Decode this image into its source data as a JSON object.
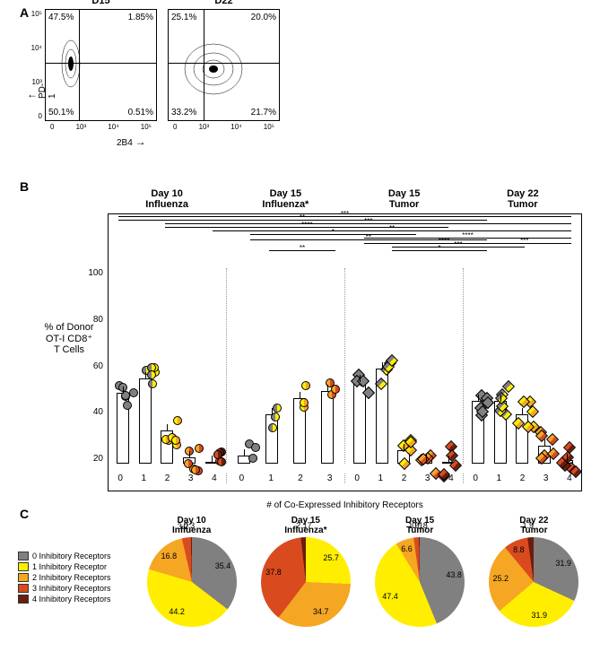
{
  "colors": {
    "c0": "#808080",
    "c1": "#ffee00",
    "c2": "#f5a623",
    "c3": "#d94b1f",
    "c4": "#6b1d0e",
    "half1a": "#808080",
    "half1b": "#ffee00",
    "half2a": "#ffee00",
    "half2b": "#f5a623",
    "half3a": "#f5a623",
    "half3b": "#d94b1f",
    "half4a": "#d94b1f",
    "half4b": "#6b1d0e"
  },
  "panelA": {
    "label": "A",
    "plots": [
      {
        "title": "D15",
        "q1": "47.5%",
        "q2": "1.85%",
        "q3": "50.1%",
        "q4": "0.51%",
        "cv": 30,
        "ch": 48
      },
      {
        "title": "D22",
        "q1": "25.1%",
        "q2": "20.0%",
        "q3": "33.2%",
        "q4": "21.7%",
        "cv": 32,
        "ch": 48
      }
    ],
    "yticks": [
      "10⁵",
      "10⁴",
      "10³",
      "0"
    ],
    "xticks": [
      "0",
      "10³",
      "10⁴",
      "10⁵"
    ],
    "ylabel": "PD-1",
    "xlabel": "2B4"
  },
  "panelB": {
    "label": "B",
    "headers": [
      "Day 10\nInfluenza",
      "Day 15\nInfluenza*",
      "Day 15\nTumor",
      "Day 22\nTumor"
    ],
    "ylabel": "% of Donor\nOT-I CD8⁺\nT Cells",
    "yticks": [
      "100",
      "80",
      "60",
      "40",
      "20"
    ],
    "xlabel": "# of Co-Expressed Inhibitory Receptors",
    "groups": [
      {
        "cats": [
          "0",
          "1",
          "2",
          "3",
          "4"
        ],
        "vals": [
          36,
          43,
          17,
          3,
          0.5
        ]
      },
      {
        "cats": [
          "0",
          "1",
          "2",
          "3"
        ],
        "vals": [
          4,
          25,
          33,
          37
        ]
      },
      {
        "cats": [
          "0",
          "1",
          "2",
          "3",
          "4"
        ],
        "vals": [
          42,
          48,
          7,
          2,
          0.3
        ]
      },
      {
        "cats": [
          "0",
          "1",
          "2",
          "3",
          "4"
        ],
        "vals": [
          32,
          32,
          25,
          9,
          2
        ]
      }
    ],
    "siglines": [
      {
        "l": 2,
        "r": 98,
        "t": 0,
        "s": "***"
      },
      {
        "l": 2,
        "r": 80,
        "t": 4,
        "s": "**"
      },
      {
        "l": 12,
        "r": 98,
        "t": 8,
        "s": "***"
      },
      {
        "l": 12,
        "r": 72,
        "t": 12,
        "s": "****"
      },
      {
        "l": 22,
        "r": 98,
        "t": 16,
        "s": "**"
      },
      {
        "l": 30,
        "r": 65,
        "t": 20,
        "s": "*"
      },
      {
        "l": 54,
        "r": 98,
        "t": 24,
        "s": "****"
      },
      {
        "l": 30,
        "r": 80,
        "t": 26,
        "s": "**"
      },
      {
        "l": 54,
        "r": 88,
        "t": 30,
        "s": "****"
      },
      {
        "l": 60,
        "r": 88,
        "t": 34,
        "s": "***"
      },
      {
        "l": 78,
        "r": 98,
        "t": 30,
        "s": "***"
      },
      {
        "l": 34,
        "r": 48,
        "t": 38,
        "s": "**"
      },
      {
        "l": 60,
        "r": 80,
        "t": 38,
        "s": "*"
      }
    ]
  },
  "panelC": {
    "label": "C",
    "legend": [
      "0 Inhibitory Receptors",
      "1 Inhibitory Receptor",
      "2 Inhibitory Receptors",
      "3 Inhibitory Receptors",
      "4 Inhibitory Receptors"
    ],
    "pies": [
      {
        "title": "Day 10\nInfluenza",
        "vals": [
          35.4,
          44.2,
          16.8,
          3.2,
          0.3
        ],
        "labels": [
          "35.4",
          "44.2",
          "16.8",
          "3.2",
          "0.3"
        ]
      },
      {
        "title": "Day 15\nInfluenza*",
        "vals": [
          0,
          25.7,
          34.7,
          37.8,
          2.17
        ],
        "labels": [
          "",
          "25.7",
          "34.7",
          "37.8",
          "2.17"
        ]
      },
      {
        "title": "Day 15\nTumor",
        "vals": [
          43.8,
          47.4,
          6.6,
          1.9,
          0.18
        ],
        "labels": [
          "43.8",
          "47.4",
          "6.6",
          "1.9",
          "0.18"
        ]
      },
      {
        "title": "Day 22\nTumor",
        "vals": [
          31.9,
          31.9,
          25.2,
          8.8,
          1.9
        ],
        "labels": [
          "31.9",
          "31.9",
          "25.2",
          "8.8",
          "1.9"
        ]
      }
    ]
  }
}
